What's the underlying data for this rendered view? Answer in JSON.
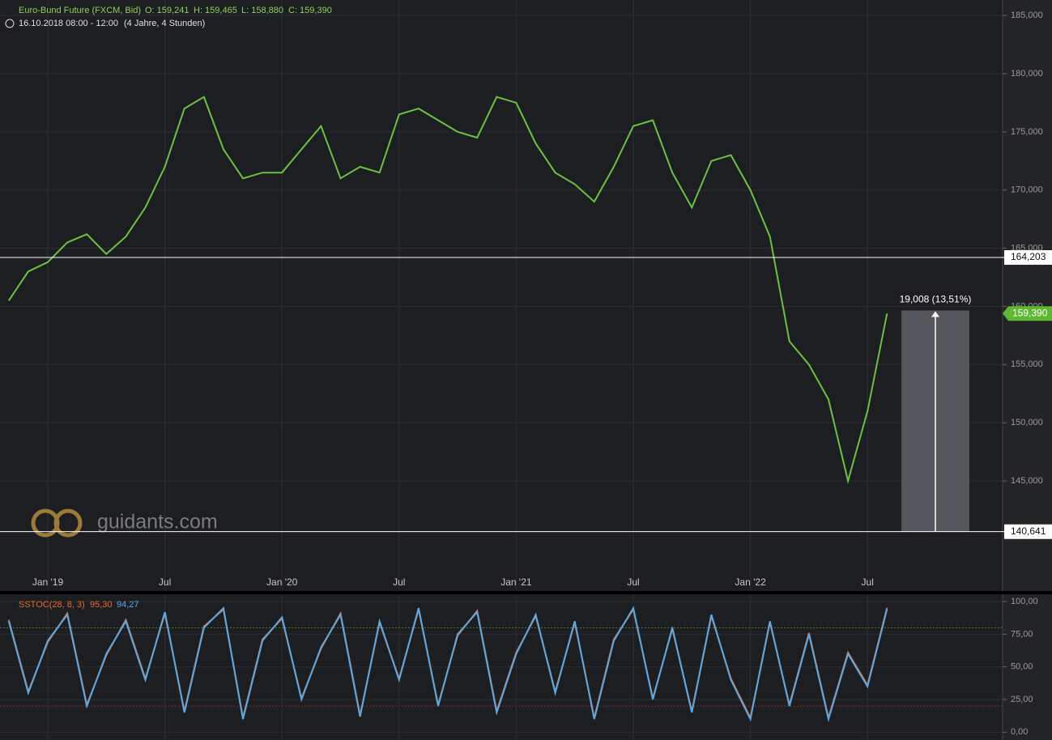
{
  "header": {
    "instrument": "Euro-Bund Future (FXCM, Bid)",
    "open": "O: 159,241",
    "high": "H: 159,465",
    "low": "L: 158,880",
    "close": "C: 159,390",
    "period": "16.10.2018 08:00 - 12:00",
    "span": "(4 Jahre, 4 Stunden)",
    "watermark": "guidants.com"
  },
  "chart_data": [
    {
      "type": "line",
      "x": [
        "2018-11",
        "2018-12",
        "2019-01",
        "2019-02",
        "2019-03",
        "2019-04",
        "2019-05",
        "2019-06",
        "2019-07",
        "2019-08",
        "2019-09",
        "2019-10",
        "2019-11",
        "2019-12",
        "2020-01",
        "2020-02",
        "2020-03",
        "2020-04",
        "2020-05",
        "2020-06",
        "2020-07",
        "2020-08",
        "2020-09",
        "2020-10",
        "2020-11",
        "2020-12",
        "2021-01",
        "2021-02",
        "2021-03",
        "2021-04",
        "2021-05",
        "2021-06",
        "2021-07",
        "2021-08",
        "2021-09",
        "2021-10",
        "2021-11",
        "2021-12",
        "2022-01",
        "2022-02",
        "2022-03",
        "2022-04",
        "2022-05",
        "2022-06",
        "2022-07",
        "2022-08"
      ],
      "series": [
        {
          "color": "#6cc142",
          "values": [
            160.5,
            163.0,
            163.8,
            165.5,
            166.2,
            164.5,
            166.0,
            168.5,
            172.0,
            177.0,
            178.0,
            173.5,
            171.0,
            171.5,
            171.5,
            173.5,
            175.5,
            171.0,
            172.0,
            171.5,
            176.5,
            177.0,
            176.0,
            175.0,
            174.5,
            178.0,
            177.5,
            174.0,
            171.5,
            170.5,
            169.0,
            172.0,
            175.5,
            176.0,
            171.5,
            168.5,
            172.5,
            173.0,
            170.0,
            166.0,
            157.0,
            155.0,
            152.0,
            145.0,
            151.0,
            159.39
          ]
        }
      ],
      "ylim": [
        135.54,
        186.33
      ],
      "yticks": [
        {
          "value": 145,
          "label": "145,000"
        },
        {
          "value": 150,
          "label": "150,000"
        },
        {
          "value": 155,
          "label": "155,000"
        },
        {
          "value": 160,
          "label": "160,000"
        },
        {
          "value": 165,
          "label": "165,000"
        },
        {
          "value": 170,
          "label": "170,000"
        },
        {
          "value": 175,
          "label": "175,000"
        },
        {
          "value": 180,
          "label": "180,000"
        },
        {
          "value": 185,
          "label": "185,000"
        }
      ],
      "xticks": [
        {
          "value": "2019-01",
          "label": "Jan '19"
        },
        {
          "value": "2019-07",
          "label": "Jul"
        },
        {
          "value": "2020-01",
          "label": "Jan '20"
        },
        {
          "value": "2020-07",
          "label": "Jul"
        },
        {
          "value": "2021-01",
          "label": "Jan '21"
        },
        {
          "value": "2021-07",
          "label": "Jul"
        },
        {
          "value": "2022-01",
          "label": "Jan '22"
        },
        {
          "value": "2022-07",
          "label": "Jul"
        }
      ],
      "hlines": [
        {
          "value": 164.203,
          "label": "164,203"
        },
        {
          "value": 140.641,
          "label": "140,641"
        }
      ],
      "last_price": {
        "value": 159.39,
        "label": "159,390"
      },
      "measure": {
        "from": 140.641,
        "to": 159.649,
        "label": "19,008 (13,51%)"
      },
      "grid": true
    },
    {
      "type": "line",
      "title": "SSTOC(28, 8, 3)",
      "x": [
        "2018-11",
        "2018-12",
        "2019-01",
        "2019-02",
        "2019-03",
        "2019-04",
        "2019-05",
        "2019-06",
        "2019-07",
        "2019-08",
        "2019-09",
        "2019-10",
        "2019-11",
        "2019-12",
        "2020-01",
        "2020-02",
        "2020-03",
        "2020-04",
        "2020-05",
        "2020-06",
        "2020-07",
        "2020-08",
        "2020-09",
        "2020-10",
        "2020-11",
        "2020-12",
        "2021-01",
        "2021-02",
        "2021-03",
        "2021-04",
        "2021-05",
        "2021-06",
        "2021-07",
        "2021-08",
        "2021-09",
        "2021-10",
        "2021-11",
        "2021-12",
        "2022-01",
        "2022-02",
        "2022-03",
        "2022-04",
        "2022-05",
        "2022-06",
        "2022-07",
        "2022-08"
      ],
      "series": [
        {
          "color": "#e8692c",
          "values": [
            86,
            31,
            69,
            91,
            21,
            59,
            86,
            41,
            91,
            16,
            81,
            94,
            11,
            71,
            87,
            26,
            64,
            91,
            13,
            84,
            41,
            94,
            21,
            74,
            93,
            16,
            61,
            89,
            31,
            84,
            11,
            71,
            94,
            26,
            79,
            16,
            89,
            41,
            11,
            84,
            21,
            76,
            11,
            61,
            36,
            95.3
          ]
        },
        {
          "color": "#5aa9e6",
          "values": [
            85,
            30,
            70,
            90,
            20,
            60,
            85,
            40,
            92,
            15,
            80,
            95,
            10,
            70,
            88,
            25,
            65,
            90,
            12,
            85,
            40,
            95,
            20,
            75,
            92,
            15,
            60,
            90,
            30,
            85,
            10,
            70,
            95,
            25,
            80,
            15,
            90,
            40,
            10,
            85,
            20,
            75,
            10,
            60,
            35,
            94.27
          ]
        }
      ],
      "legend_values": [
        {
          "value": 95.3,
          "label": "95,30"
        },
        {
          "value": 94.27,
          "label": "94,27"
        }
      ],
      "levels": [
        {
          "value": 80,
          "color": "#4e7a2c"
        },
        {
          "value": 20,
          "color": "#8a2b22"
        }
      ],
      "ylim": [
        -6,
        105
      ],
      "yticks": [
        {
          "value": 0,
          "label": "0,00"
        },
        {
          "value": 25,
          "label": "25,00"
        },
        {
          "value": 50,
          "label": "50,00"
        },
        {
          "value": 75,
          "label": "75,00"
        },
        {
          "value": 100,
          "label": "100,00"
        }
      ],
      "grid": true
    }
  ]
}
